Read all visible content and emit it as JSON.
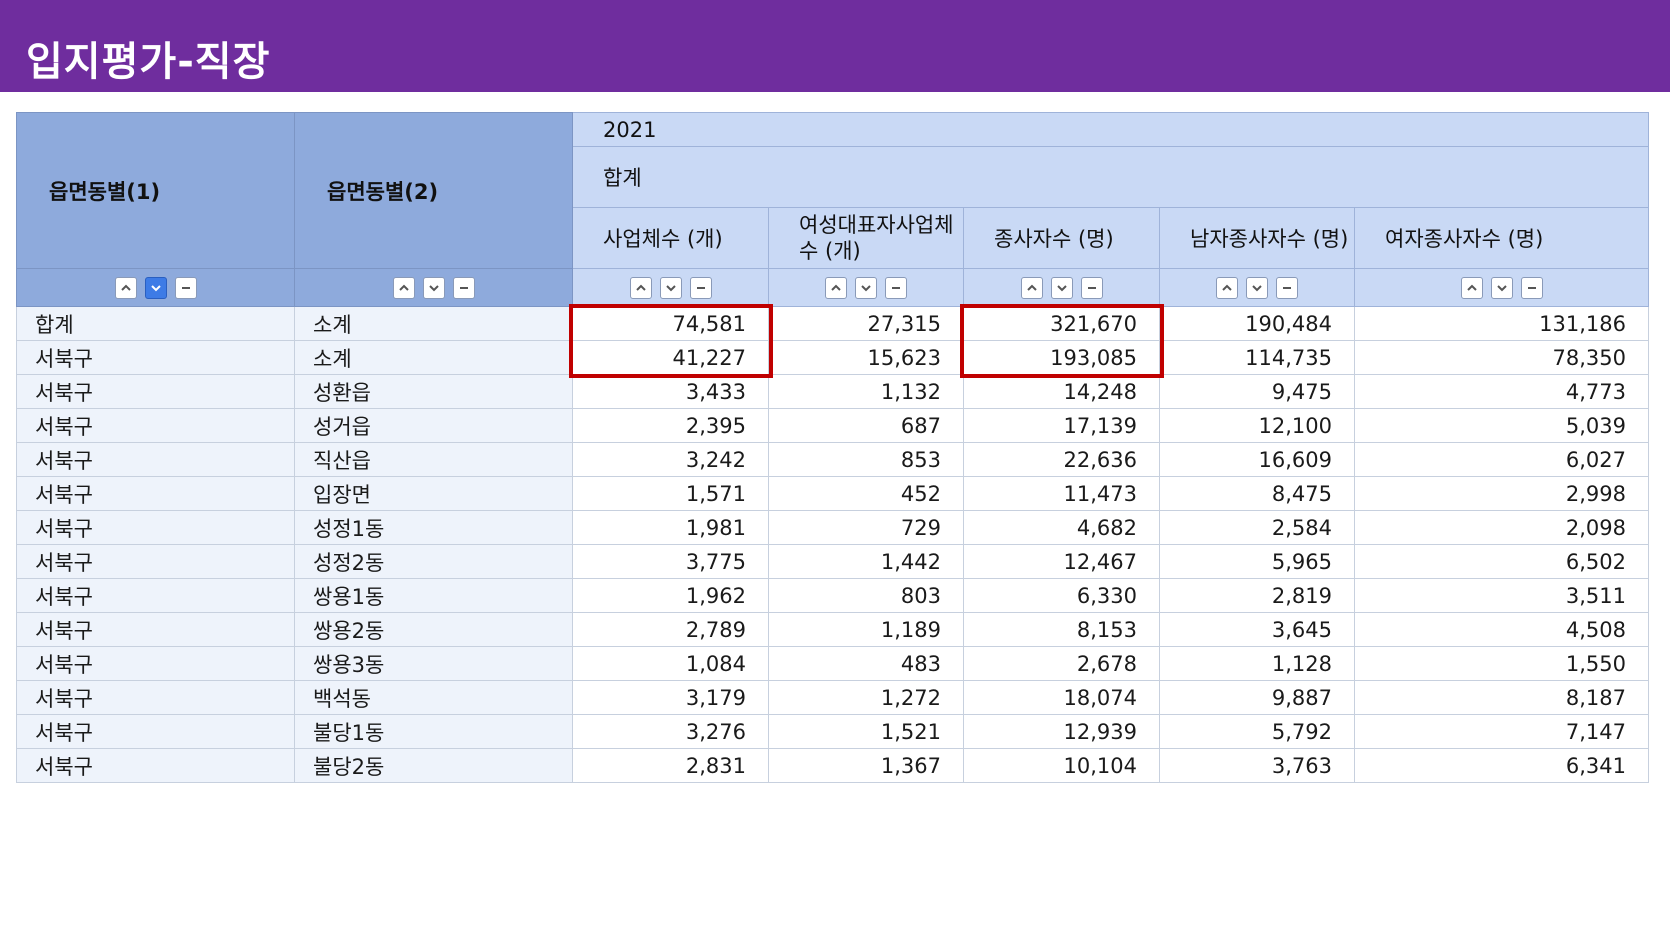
{
  "title": "입지평가-직장",
  "table": {
    "dim_headers": [
      "읍면동별(1)",
      "읍면동별(2)"
    ],
    "year": "2021",
    "group": "합계",
    "columns": [
      "사업체수 (개)",
      "여성대표자사업체수 (개)",
      "종사자수 (명)",
      "남자종사자수 (명)",
      "여자종사자수 (명)"
    ],
    "rows": [
      {
        "d1": "합계",
        "d2": "소계",
        "v": [
          "74,581",
          "27,315",
          "321,670",
          "190,484",
          "131,186"
        ]
      },
      {
        "d1": "서북구",
        "d2": "소계",
        "v": [
          "41,227",
          "15,623",
          "193,085",
          "114,735",
          "78,350"
        ]
      },
      {
        "d1": "서북구",
        "d2": "성환읍",
        "v": [
          "3,433",
          "1,132",
          "14,248",
          "9,475",
          "4,773"
        ]
      },
      {
        "d1": "서북구",
        "d2": "성거읍",
        "v": [
          "2,395",
          "687",
          "17,139",
          "12,100",
          "5,039"
        ]
      },
      {
        "d1": "서북구",
        "d2": "직산읍",
        "v": [
          "3,242",
          "853",
          "22,636",
          "16,609",
          "6,027"
        ]
      },
      {
        "d1": "서북구",
        "d2": "입장면",
        "v": [
          "1,571",
          "452",
          "11,473",
          "8,475",
          "2,998"
        ]
      },
      {
        "d1": "서북구",
        "d2": "성정1동",
        "v": [
          "1,981",
          "729",
          "4,682",
          "2,584",
          "2,098"
        ]
      },
      {
        "d1": "서북구",
        "d2": "성정2동",
        "v": [
          "3,775",
          "1,442",
          "12,467",
          "5,965",
          "6,502"
        ]
      },
      {
        "d1": "서북구",
        "d2": "쌍용1동",
        "v": [
          "1,962",
          "803",
          "6,330",
          "2,819",
          "3,511"
        ]
      },
      {
        "d1": "서북구",
        "d2": "쌍용2동",
        "v": [
          "2,789",
          "1,189",
          "8,153",
          "3,645",
          "4,508"
        ]
      },
      {
        "d1": "서북구",
        "d2": "쌍용3동",
        "v": [
          "1,084",
          "483",
          "2,678",
          "1,128",
          "1,550"
        ]
      },
      {
        "d1": "서북구",
        "d2": "백석동",
        "v": [
          "3,179",
          "1,272",
          "18,074",
          "9,887",
          "8,187"
        ]
      },
      {
        "d1": "서북구",
        "d2": "불당1동",
        "v": [
          "3,276",
          "1,521",
          "12,939",
          "5,792",
          "7,147"
        ]
      },
      {
        "d1": "서북구",
        "d2": "불당2동",
        "v": [
          "2,831",
          "1,367",
          "10,104",
          "3,763",
          "6,341"
        ]
      }
    ]
  },
  "colors": {
    "title_bar": "#6f2d9e",
    "dim_header": "#8eaadc",
    "col_header": "#c9d9f5",
    "highlight": "#c00000",
    "active_sort": "#3d7be6"
  },
  "icons": [
    "sort-ascending-icon",
    "sort-descending-icon",
    "remove-icon"
  ]
}
